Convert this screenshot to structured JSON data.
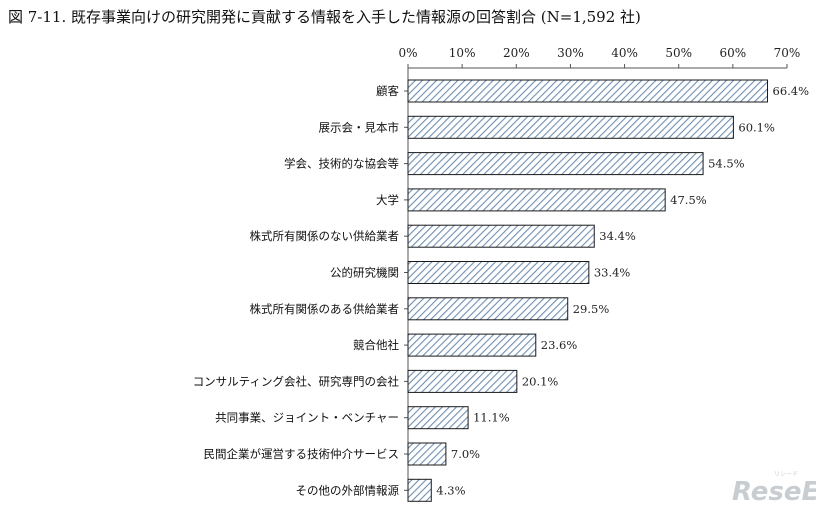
{
  "title": "図 7-11. 既存事業向けの研究開発に貢献する情報を入手した情報源の回答割合 (N=1,592 社)",
  "watermark": {
    "text": "ReseEd",
    "sub": "リシード"
  },
  "colors": {
    "bar_stroke": "#1a1a1a",
    "hatch": "#6f8fb3",
    "axis": "#555555"
  },
  "chart_data": {
    "type": "bar",
    "orientation": "horizontal",
    "title": "図 7-11. 既存事業向けの研究開発に貢献する情報を入手した情報源の回答割合 (N=1,592 社)",
    "xlim": [
      0,
      70
    ],
    "ticks": [
      0,
      10,
      20,
      30,
      40,
      50,
      60,
      70
    ],
    "tick_labels": [
      "0%",
      "10%",
      "20%",
      "30%",
      "40%",
      "50%",
      "60%",
      "70%"
    ],
    "categories": [
      "顧客",
      "展示会・見本市",
      "学会、技術的な協会等",
      "大学",
      "株式所有関係のない供給業者",
      "公的研究機関",
      "株式所有関係のある供給業者",
      "競合他社",
      "コンサルティング会社、研究専門の会社",
      "共同事業、ジョイント・ベンチャー",
      "民間企業が運営する技術仲介サービス",
      "その他の外部情報源"
    ],
    "values": [
      66.4,
      60.1,
      54.5,
      47.5,
      34.4,
      33.4,
      29.5,
      23.6,
      20.1,
      11.1,
      7.0,
      4.3
    ],
    "value_labels": [
      "66.4%",
      "60.1%",
      "54.5%",
      "47.5%",
      "34.4%",
      "33.4%",
      "29.5%",
      "23.6%",
      "20.1%",
      "11.1%",
      "7.0%",
      "4.3%"
    ],
    "grid": false,
    "legend": "none"
  }
}
